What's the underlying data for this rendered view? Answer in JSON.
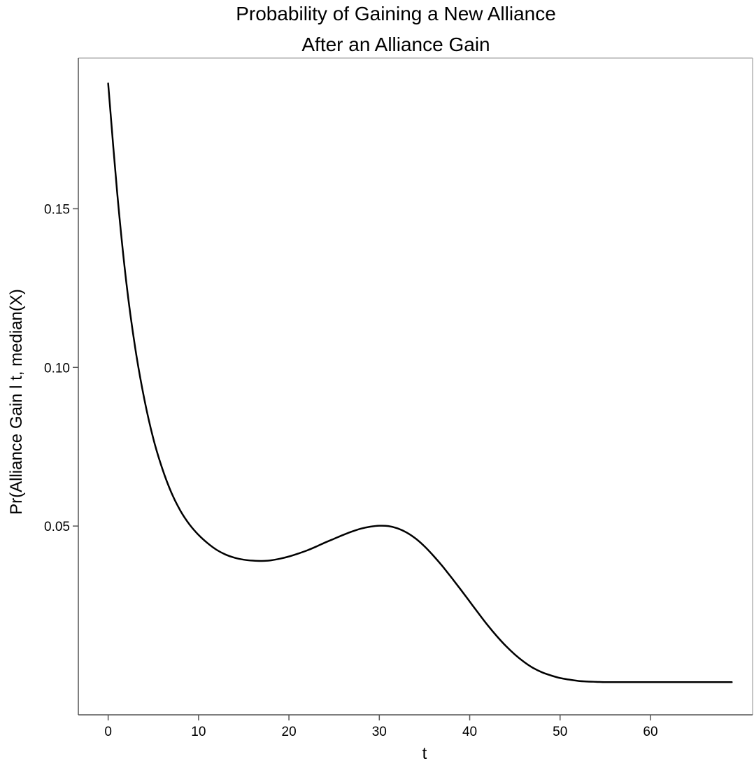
{
  "chart_data": {
    "type": "line",
    "title": [
      "Probability of Gaining a New Alliance",
      "After an Alliance Gain"
    ],
    "xlabel": "t",
    "ylabel": "Pr(Alliance Gain l t, median(X)",
    "xlim": [
      -3.3,
      71.3
    ],
    "ylim": [
      -0.0095,
      0.1975
    ],
    "xticks": [
      0,
      10,
      20,
      30,
      40,
      50,
      60
    ],
    "xtick_labels": [
      "0",
      "10",
      "20",
      "30",
      "40",
      "50",
      "60"
    ],
    "yticks": [
      0.05,
      0.1,
      0.15
    ],
    "ytick_labels": [
      "0.05",
      "0.10",
      "0.15"
    ],
    "grid": false,
    "series": [
      {
        "color": "#000000",
        "x": [
          0,
          1,
          2,
          3,
          4,
          5,
          6,
          7,
          8,
          9,
          10,
          11,
          12,
          13,
          14,
          15,
          16,
          17,
          18,
          19,
          20,
          21,
          22,
          23,
          24,
          25,
          26,
          27,
          28,
          29,
          30,
          31,
          32,
          33,
          34,
          35,
          36,
          37,
          38,
          39,
          40,
          41,
          42,
          43,
          44,
          45,
          46,
          47,
          48,
          49,
          50,
          51,
          52,
          53,
          54,
          55,
          56,
          57,
          58,
          59,
          60,
          61,
          62,
          63,
          64,
          65,
          66,
          67,
          68,
          69
        ],
        "y": [
          0.1895,
          0.155,
          0.127,
          0.106,
          0.09,
          0.0775,
          0.068,
          0.0605,
          0.0548,
          0.0505,
          0.0472,
          0.0446,
          0.0425,
          0.041,
          0.04,
          0.0394,
          0.0391,
          0.039,
          0.0392,
          0.0397,
          0.0404,
          0.0413,
          0.0423,
          0.0435,
          0.0448,
          0.046,
          0.0472,
          0.0483,
          0.0492,
          0.0498,
          0.0501,
          0.05,
          0.0493,
          0.048,
          0.0461,
          0.0436,
          0.0406,
          0.0373,
          0.0337,
          0.03,
          0.0262,
          0.0224,
          0.0187,
          0.0153,
          0.0122,
          0.0095,
          0.0072,
          0.0053,
          0.0039,
          0.0029,
          0.0021,
          0.0016,
          0.0012,
          0.001,
          0.0009,
          0.0008,
          0.0008,
          0.0008,
          0.0008,
          0.0008,
          0.0008,
          0.0008,
          0.0008,
          0.0008,
          0.0008,
          0.0008,
          0.0008,
          0.0008,
          0.0008,
          0.0008
        ]
      }
    ]
  }
}
